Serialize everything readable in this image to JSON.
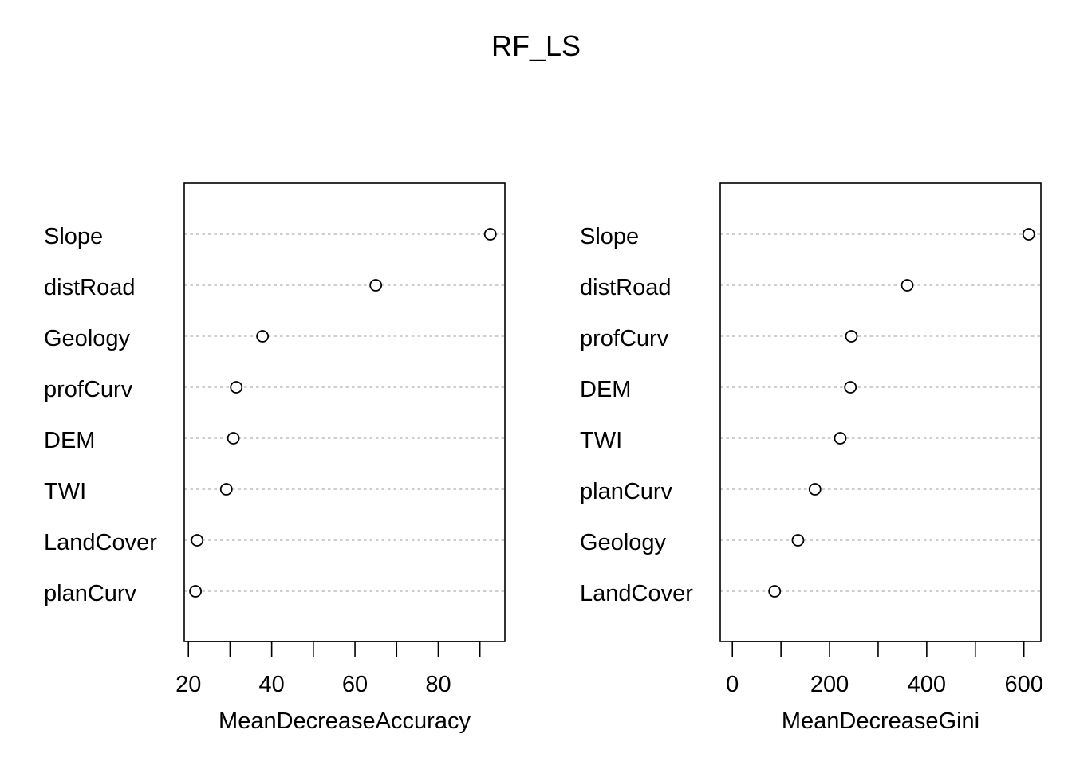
{
  "chart_data": {
    "type": "scatter",
    "title": "RF_LS",
    "panels": [
      {
        "xlabel": "MeanDecreaseAccuracy",
        "xlim": [
          19,
          96
        ],
        "xticks": [
          20,
          30,
          40,
          50,
          60,
          70,
          80,
          90
        ],
        "xtick_labels": [
          "20",
          "",
          "40",
          "",
          "60",
          "",
          "80",
          ""
        ],
        "categories": [
          "Slope",
          "distRoad",
          "Geology",
          "profCurv",
          "DEM",
          "TWI",
          "LandCover",
          "planCurv"
        ],
        "values": [
          92.5,
          65.0,
          37.8,
          31.5,
          30.8,
          29.1,
          22.1,
          21.7
        ]
      },
      {
        "xlabel": "MeanDecreaseGini",
        "xlim": [
          -25,
          635
        ],
        "xticks": [
          0,
          100,
          200,
          300,
          400,
          500,
          600
        ],
        "xtick_labels": [
          "0",
          "",
          "200",
          "",
          "400",
          "",
          "600"
        ],
        "categories": [
          "Slope",
          "distRoad",
          "profCurv",
          "DEM",
          "TWI",
          "planCurv",
          "Geology",
          "LandCover"
        ],
        "values": [
          610,
          360,
          245,
          243,
          222,
          170,
          135,
          87
        ]
      }
    ],
    "grid": "dotted horizontal reference lines",
    "legend": "none"
  }
}
